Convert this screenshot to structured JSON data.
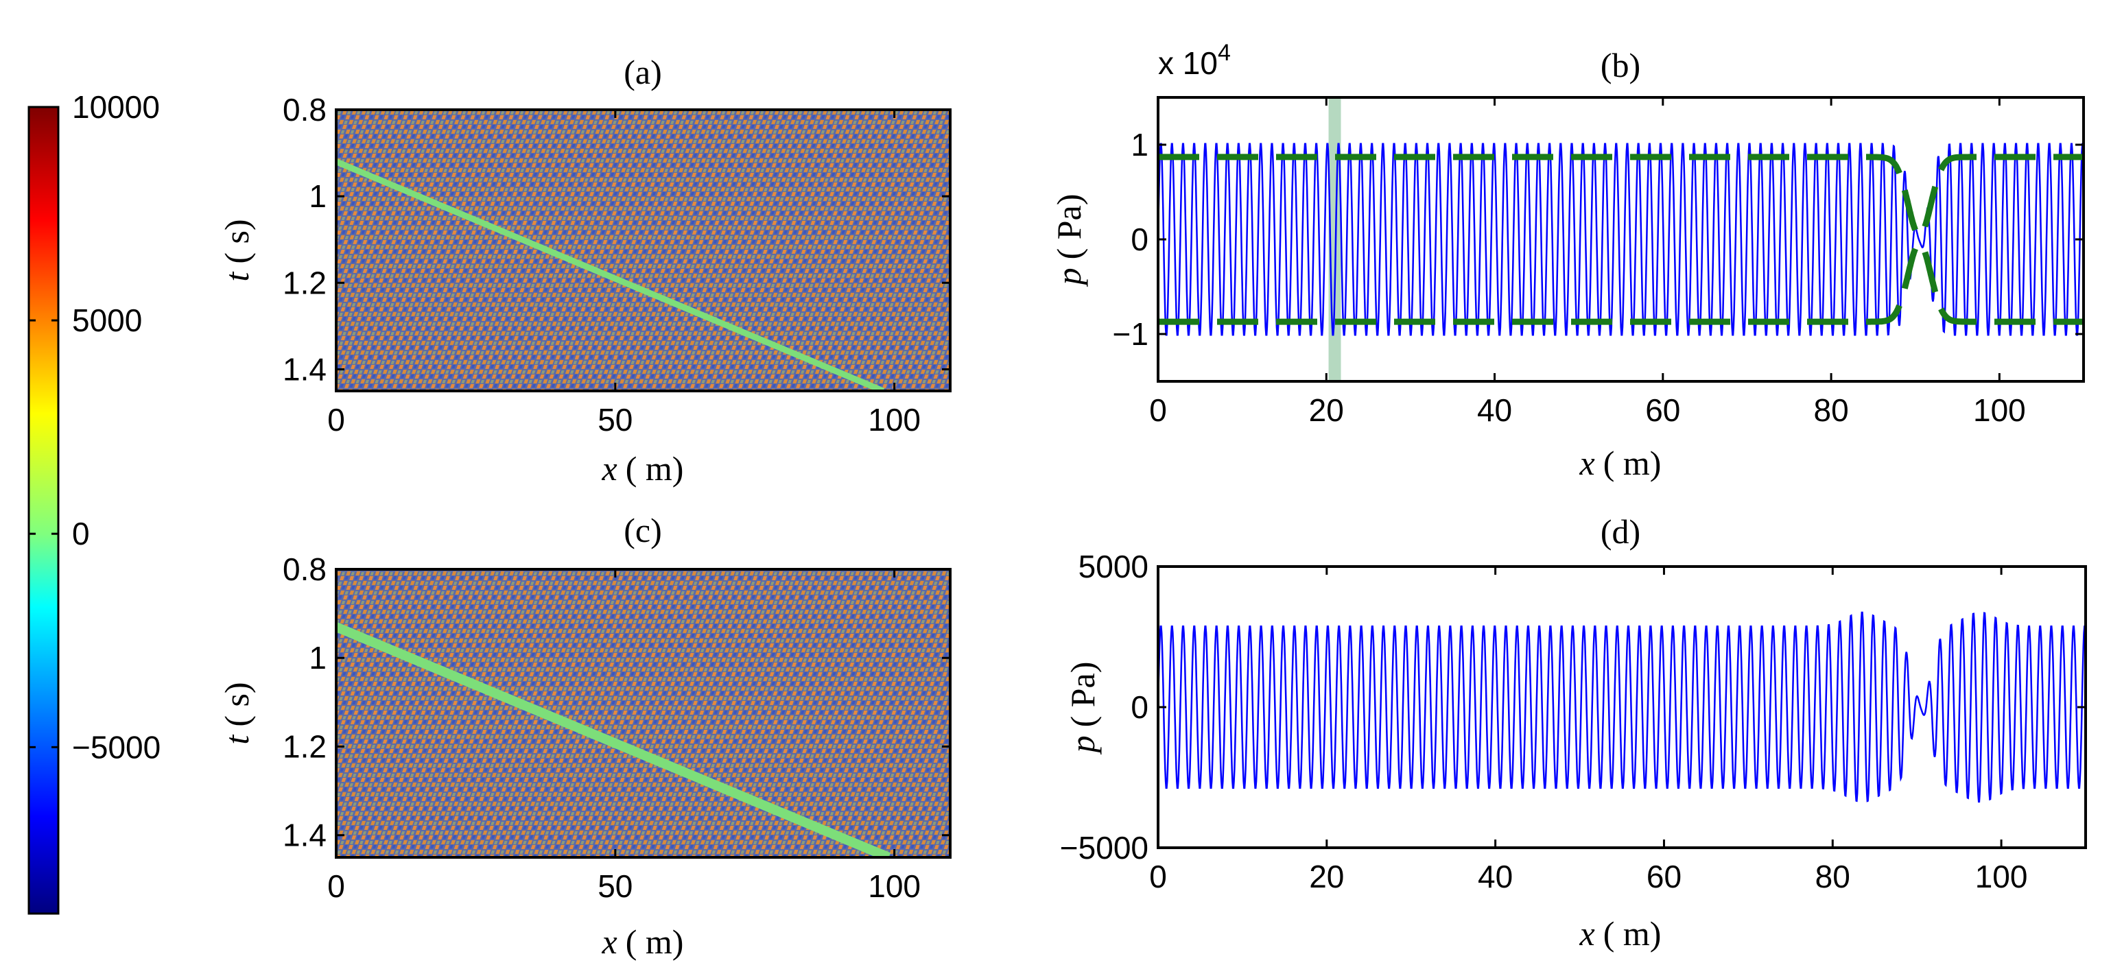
{
  "colorbar": {
    "ticks": [
      10000,
      5000,
      0,
      -5000
    ],
    "tick_labels": [
      "10000",
      "5000",
      "0",
      "−5000"
    ],
    "range": [
      -8900,
      10000
    ],
    "colormap": "jet",
    "stops": [
      "#00007f",
      "#0000ff",
      "#00ffff",
      "#ffff00",
      "#ff0000",
      "#7f0000"
    ]
  },
  "chart_data": [
    {
      "id": "a",
      "type": "heatmap",
      "title": "(a)",
      "xlabel_var": "x",
      "xlabel_unit": "( m)",
      "ylabel_var": "t",
      "ylabel_unit": "( s)",
      "xlim": [
        0,
        110
      ],
      "ylim": [
        0.8,
        1.45
      ],
      "xticks": [
        0,
        50,
        100
      ],
      "yticks": [
        0.8,
        1,
        1.2,
        1.4
      ],
      "xtick_labels": [
        "0",
        "50",
        "100"
      ],
      "ytick_labels": [
        "0.8",
        "1",
        "1.2",
        "1.4"
      ],
      "colors": {
        "background": "#5a6aa8",
        "pattern": [
          "#e58a3c",
          "#3d56c0",
          "#8c9a7a"
        ],
        "band": "#7dde7a"
      },
      "band": {
        "x": [
          0,
          98
        ],
        "t": [
          0.92,
          1.45
        ]
      }
    },
    {
      "id": "b",
      "type": "line",
      "title": "(b)",
      "xlabel_var": "x",
      "xlabel_unit": "( m)",
      "ylabel_var": "p",
      "ylabel_unit": "( Pa)",
      "scale_label": "x 10",
      "scale_exponent": "4",
      "xlim": [
        0,
        110
      ],
      "ylim": [
        -1.5,
        1.5
      ],
      "xticks": [
        0,
        20,
        40,
        60,
        80,
        100
      ],
      "yticks": [
        1,
        0,
        -1
      ],
      "xtick_labels": [
        "0",
        "20",
        "40",
        "60",
        "80",
        "100"
      ],
      "ytick_labels": [
        "1",
        "0",
        "−1"
      ],
      "series": [
        {
          "name": "pressure",
          "amplitude": 1.0,
          "wavelength_m": 1.32,
          "color": "#0000ff"
        },
        {
          "name": "envelope",
          "amplitude": 0.87,
          "gap_center_m": 90.5,
          "color": "#1a7a1a",
          "style": "dashed"
        }
      ],
      "highlight_x": 21,
      "highlight_color": "#b5d9c0"
    },
    {
      "id": "c",
      "type": "heatmap",
      "title": "(c)",
      "xlabel_var": "x",
      "xlabel_unit": "( m)",
      "ylabel_var": "t",
      "ylabel_unit": "( s)",
      "xlim": [
        0,
        110
      ],
      "ylim": [
        0.8,
        1.45
      ],
      "xticks": [
        0,
        50,
        100
      ],
      "yticks": [
        0.8,
        1,
        1.2,
        1.4
      ],
      "xtick_labels": [
        "0",
        "50",
        "100"
      ],
      "ytick_labels": [
        "0.8",
        "1",
        "1.2",
        "1.4"
      ],
      "colors": {
        "background": "#5a6aa8",
        "pattern": [
          "#e58a3c",
          "#3d56c0",
          "#8c9a7a"
        ],
        "band": "#7dde7a"
      },
      "band": {
        "x": [
          0,
          99
        ],
        "t": [
          0.93,
          1.45
        ]
      }
    },
    {
      "id": "d",
      "type": "line",
      "title": "(d)",
      "xlabel_var": "x",
      "xlabel_unit": "( m)",
      "ylabel_var": "p",
      "ylabel_unit": "( Pa)",
      "xlim": [
        0,
        110
      ],
      "ylim": [
        -5000,
        5000
      ],
      "xticks": [
        0,
        20,
        40,
        60,
        80,
        100
      ],
      "yticks": [
        5000,
        0,
        -5000
      ],
      "xtick_labels": [
        "0",
        "20",
        "40",
        "60",
        "80",
        "100"
      ],
      "ytick_labels": [
        "5000",
        "0",
        "−5000"
      ],
      "series": [
        {
          "name": "pressure",
          "amplitude": 2900,
          "peak_amplitude": 3400,
          "wavelength_m": 1.32,
          "gap_center_m": 90.5,
          "color": "#0000ff"
        }
      ]
    }
  ]
}
